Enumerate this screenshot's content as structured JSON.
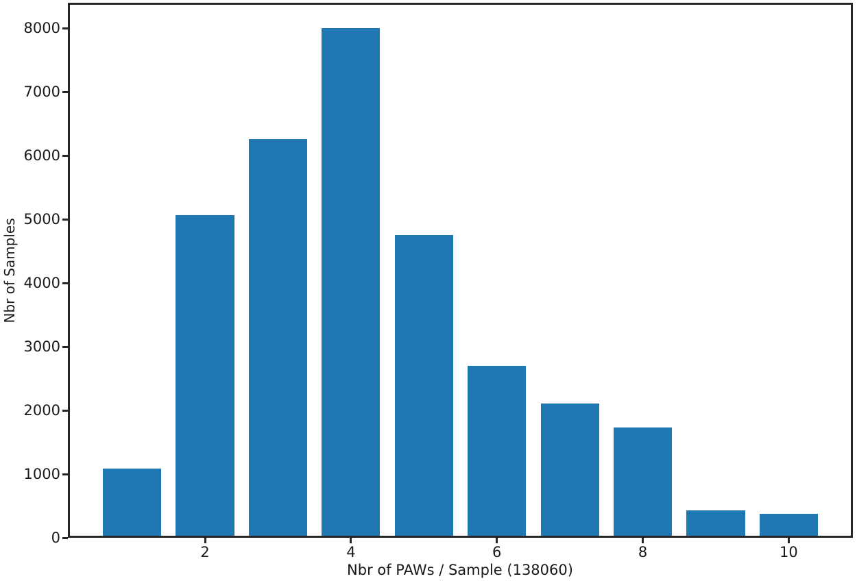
{
  "figure": {
    "background": "#ffffff",
    "bar_color": "#1f77b4",
    "axis_color": "#262626",
    "text_color": "#1a1a1a"
  },
  "chart_data": {
    "type": "bar",
    "title": "",
    "xlabel": "Nbr of PAWs / Sample (138060)",
    "ylabel": "Nbr of Samples",
    "x": [
      1,
      2,
      3,
      4,
      5,
      6,
      7,
      8,
      9,
      10
    ],
    "values": [
      1090,
      5065,
      6260,
      8005,
      4755,
      2700,
      2105,
      1730,
      435,
      380
    ],
    "bar_width": 0.8,
    "xlim": [
      0.12,
      10.88
    ],
    "ylim": [
      0,
      8400
    ],
    "xticks": [
      2,
      4,
      6,
      8,
      10
    ],
    "yticks": [
      0,
      1000,
      2000,
      3000,
      4000,
      5000,
      6000,
      7000,
      8000
    ],
    "grid": false,
    "legend": null
  }
}
